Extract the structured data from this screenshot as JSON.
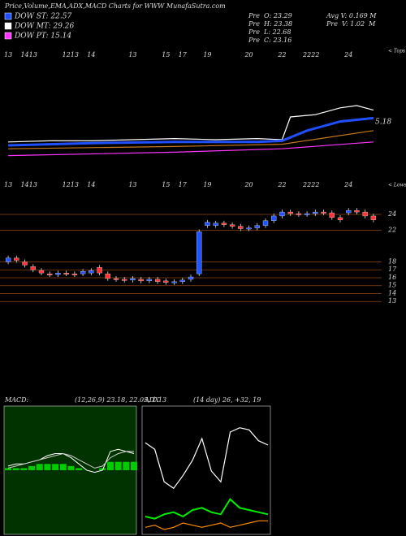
{
  "header": {
    "title": "Price,Volume,EMA,ADX,MACD Charts for WWW MunafaSutra.com",
    "legend": [
      {
        "label": "DOW ST: 22.57",
        "color": "#1f4fff"
      },
      {
        "label": "DOW MT: 29.26",
        "color": "#ffffff"
      },
      {
        "label": "DOW PT: 15.14",
        "color": "#ff33ff"
      }
    ],
    "stats": [
      "Pre  O: 23.29",
      "Pre  H: 23.38",
      "Pre  L: 22.68",
      "Pre  C: 23.16",
      "Avg V: 0.169 M",
      "Pre  V: 1.02  M"
    ]
  },
  "chart_data": [
    {
      "type": "line",
      "corner_label": "< Tops",
      "annotations": [
        "5.18"
      ],
      "ylim": [
        0,
        100
      ],
      "series": [
        {
          "color": "#ffffff",
          "x": [
            0,
            5,
            10,
            15,
            20,
            25,
            30,
            33,
            34,
            37,
            40,
            42,
            44
          ],
          "values": [
            18,
            19,
            19,
            20,
            21,
            20,
            21,
            20,
            40,
            42,
            48,
            50,
            46
          ]
        },
        {
          "color": "#1f4fff",
          "x": [
            0,
            10,
            20,
            30,
            33,
            36,
            40,
            44
          ],
          "values": [
            15,
            17,
            18,
            18,
            19,
            28,
            36,
            39
          ]
        },
        {
          "color": "#c8781e",
          "x": [
            0,
            20,
            33,
            44
          ],
          "values": [
            12,
            14,
            16,
            28
          ]
        },
        {
          "color": "#ff33ff",
          "x": [
            0,
            20,
            33,
            44
          ],
          "values": [
            6,
            9,
            12,
            18
          ]
        }
      ]
    },
    {
      "type": "candlestick",
      "corner_label": "< Lows",
      "up_color": "#2255ff",
      "down_color": "#ff3333",
      "grid_color": "#8b4513",
      "ylim": [
        12.1,
        28
      ],
      "yticks": [
        24,
        22,
        18,
        17,
        16,
        15,
        14,
        13
      ],
      "categories": [
        "13",
        null,
        "14",
        "13",
        null,
        null,
        null,
        "12",
        "13",
        null,
        "14",
        null,
        null,
        null,
        null,
        "13",
        null,
        null,
        null,
        "15",
        null,
        "17",
        null,
        null,
        "19",
        null,
        null,
        null,
        null,
        "20",
        null,
        null,
        null,
        "22",
        null,
        null,
        "22",
        "22",
        null,
        null,
        null,
        "24",
        null,
        null,
        null
      ],
      "open": [
        18.0,
        18.5,
        18.0,
        17.4,
        16.9,
        16.5,
        16.4,
        16.6,
        16.5,
        16.5,
        16.6,
        17.3,
        16.5,
        15.9,
        15.8,
        15.7,
        15.8,
        15.6,
        15.8,
        15.6,
        15.4,
        15.5,
        15.8,
        16.5,
        22.6,
        22.6,
        22.9,
        22.7,
        22.5,
        22.2,
        22.3,
        22.6,
        23.2,
        23.8,
        24.3,
        24.1,
        24.0,
        24.1,
        24.3,
        24.2,
        23.6,
        24.2,
        24.5,
        24.3,
        23.8
      ],
      "close": [
        18.5,
        18.2,
        17.6,
        17.0,
        16.6,
        16.4,
        16.6,
        16.5,
        16.4,
        16.8,
        16.9,
        16.6,
        15.9,
        15.8,
        15.7,
        15.9,
        15.6,
        15.8,
        15.5,
        15.4,
        15.5,
        15.7,
        16.1,
        21.8,
        23.0,
        22.9,
        22.7,
        22.5,
        22.2,
        22.3,
        22.6,
        23.2,
        23.8,
        24.3,
        24.1,
        24.0,
        24.1,
        24.3,
        24.2,
        23.6,
        23.3,
        24.5,
        24.3,
        23.8,
        23.3
      ],
      "high": [
        18.8,
        18.8,
        18.3,
        17.7,
        17.2,
        16.8,
        16.9,
        16.9,
        16.8,
        17.1,
        17.2,
        17.6,
        16.8,
        16.2,
        16.1,
        16.2,
        16.1,
        16.1,
        16.1,
        15.9,
        15.8,
        16.0,
        16.4,
        22.1,
        23.3,
        23.2,
        23.2,
        23.0,
        22.8,
        22.6,
        22.9,
        23.5,
        24.1,
        24.6,
        24.6,
        24.4,
        24.4,
        24.6,
        24.6,
        24.5,
        23.9,
        24.8,
        24.8,
        24.6,
        24.1
      ],
      "low": [
        17.7,
        17.9,
        17.3,
        16.7,
        16.3,
        16.1,
        16.1,
        16.2,
        16.1,
        16.2,
        16.3,
        16.3,
        15.6,
        15.5,
        15.4,
        15.4,
        15.3,
        15.3,
        15.2,
        15.1,
        15.1,
        15.2,
        15.5,
        16.2,
        22.3,
        22.3,
        22.4,
        22.2,
        21.9,
        21.9,
        22.0,
        22.3,
        22.9,
        23.5,
        23.8,
        23.7,
        23.7,
        23.8,
        23.9,
        23.3,
        23.0,
        23.9,
        24.0,
        23.5,
        23.0
      ]
    },
    {
      "type": "macd",
      "label": "MACD:",
      "params": "(12,26,9) 23.18, 22.05, 1.13",
      "ylim": [
        -3,
        3
      ],
      "histogram": {
        "color": "#00cc00",
        "values": [
          0.1,
          0.1,
          0.1,
          0.2,
          0.3,
          0.3,
          0.3,
          0.3,
          0.2,
          0.1,
          0.0,
          0.0,
          0.1,
          0.4,
          0.4,
          0.4,
          0.4
        ]
      },
      "series": [
        {
          "color": "#ffffff",
          "values": [
            0.2,
            0.3,
            0.3,
            0.4,
            0.5,
            0.7,
            0.8,
            0.8,
            0.6,
            0.3,
            0.0,
            -0.1,
            0.0,
            0.9,
            1.0,
            0.9,
            0.8
          ]
        },
        {
          "color": "#cccccc",
          "values": [
            0.1,
            0.2,
            0.3,
            0.4,
            0.5,
            0.6,
            0.7,
            0.8,
            0.7,
            0.5,
            0.3,
            0.1,
            0.2,
            0.6,
            0.8,
            0.9,
            0.9
          ]
        }
      ]
    },
    {
      "type": "adx",
      "label": "ADX",
      "params": "(14 day) 26, +32, 19",
      "ylim": [
        0,
        60
      ],
      "series": [
        {
          "color": "#ffffff",
          "values": [
            43,
            40,
            25,
            22,
            28,
            35,
            45,
            30,
            25,
            48,
            50,
            49,
            44,
            42
          ]
        },
        {
          "color": "#00ee00",
          "values": [
            9,
            8,
            10,
            11,
            9,
            12,
            13,
            11,
            10,
            17,
            13,
            12,
            11,
            10
          ]
        },
        {
          "color": "#ff8c00",
          "values": [
            4,
            5,
            3,
            4,
            6,
            5,
            4,
            5,
            6,
            4,
            5,
            6,
            7,
            7
          ]
        }
      ]
    }
  ]
}
